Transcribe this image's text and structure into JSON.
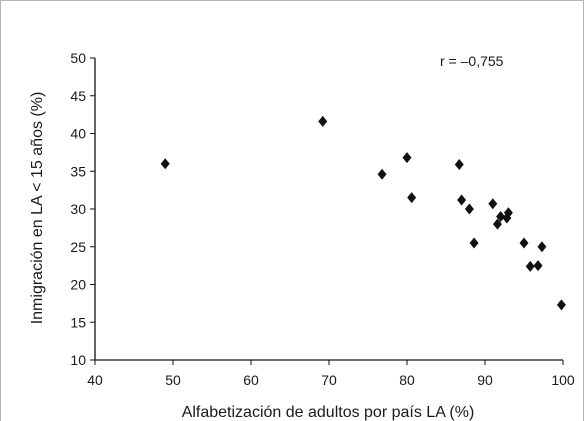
{
  "chart_data": {
    "type": "scatter",
    "title": "",
    "xlabel": "Alfabetización de adultos por país LA (%)",
    "ylabel": "Inmigración en LA < 15 años (%)",
    "xlim": [
      40,
      100
    ],
    "ylim": [
      10,
      50
    ],
    "x_ticks": [
      40,
      50,
      60,
      70,
      80,
      90,
      100
    ],
    "y_ticks": [
      10,
      15,
      20,
      25,
      30,
      35,
      40,
      45,
      50
    ],
    "annotation": "r = –0,755",
    "grid": false,
    "marker": "diamond",
    "marker_color": "#111111",
    "points": [
      {
        "x": 49.0,
        "y": 36.0
      },
      {
        "x": 69.2,
        "y": 41.6
      },
      {
        "x": 76.8,
        "y": 34.6
      },
      {
        "x": 80.0,
        "y": 36.8
      },
      {
        "x": 80.6,
        "y": 31.5
      },
      {
        "x": 86.7,
        "y": 35.9
      },
      {
        "x": 87.0,
        "y": 31.2
      },
      {
        "x": 88.0,
        "y": 30.0
      },
      {
        "x": 88.6,
        "y": 25.5
      },
      {
        "x": 91.0,
        "y": 30.7
      },
      {
        "x": 91.6,
        "y": 28.0
      },
      {
        "x": 92.0,
        "y": 29.0
      },
      {
        "x": 92.8,
        "y": 28.8
      },
      {
        "x": 93.0,
        "y": 29.5
      },
      {
        "x": 95.0,
        "y": 25.5
      },
      {
        "x": 95.8,
        "y": 22.4
      },
      {
        "x": 96.8,
        "y": 22.5
      },
      {
        "x": 97.3,
        "y": 25.0
      },
      {
        "x": 99.8,
        "y": 17.3
      }
    ]
  }
}
